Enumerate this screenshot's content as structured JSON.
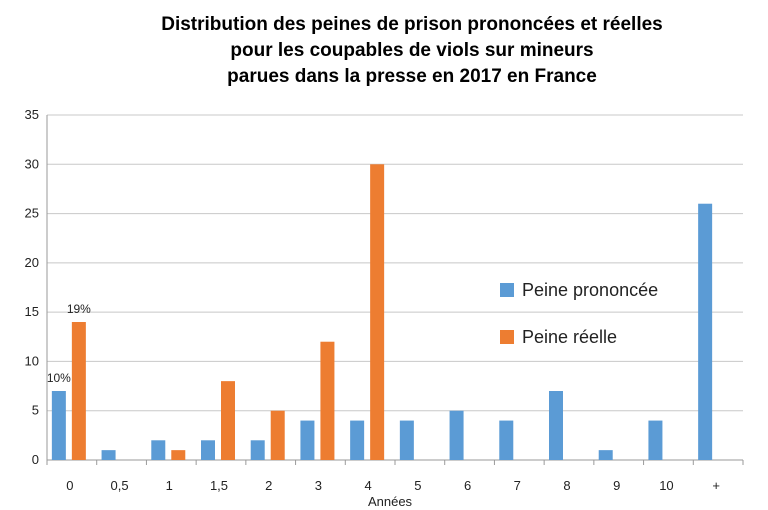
{
  "chart_data": {
    "type": "bar",
    "title_lines": [
      "Distribution des peines de prison prononcées et réelles",
      "pour les coupables de viols sur mineurs",
      "parues dans la presse en 2017 en France"
    ],
    "xlabel": "Années",
    "ylabel": "",
    "categories": [
      "0",
      "0,5",
      "1",
      "1,5",
      "2",
      "3",
      "4",
      "5",
      "6",
      "7",
      "8",
      "9",
      "10",
      "+"
    ],
    "ylim": [
      0,
      35
    ],
    "yticks": [
      "0",
      "5",
      "10",
      "15",
      "20",
      "25",
      "30",
      "35"
    ],
    "grid": true,
    "legend_position": "center-right",
    "series": [
      {
        "name": "Peine prononcée",
        "color": "#5B9BD5",
        "values": [
          7,
          1,
          2,
          2,
          2,
          4,
          4,
          4,
          5,
          4,
          7,
          1,
          4,
          26
        ]
      },
      {
        "name": "Peine réelle",
        "color": "#ED7D31",
        "values": [
          14,
          0,
          1,
          8,
          5,
          12,
          30,
          0,
          0,
          0,
          0,
          0,
          0,
          0
        ]
      }
    ],
    "annotations": [
      {
        "text": "10%",
        "series": 0,
        "category": "0"
      },
      {
        "text": "19%",
        "series": 1,
        "category": "0"
      }
    ]
  }
}
